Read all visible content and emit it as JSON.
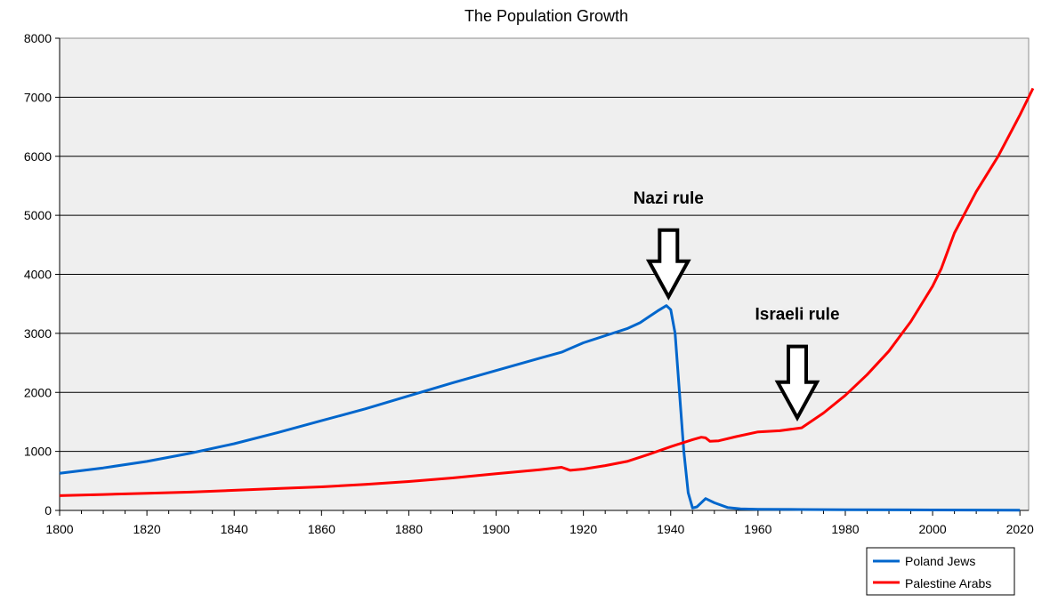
{
  "chart_data": {
    "type": "line",
    "title": "The Population Growth",
    "xlabel": "",
    "ylabel": "",
    "xlim": [
      1800,
      2022
    ],
    "ylim": [
      0,
      8000
    ],
    "x_ticks": [
      1800,
      1820,
      1840,
      1860,
      1880,
      1900,
      1920,
      1940,
      1960,
      1980,
      2000,
      2020
    ],
    "y_ticks": [
      0,
      1000,
      2000,
      3000,
      4000,
      5000,
      6000,
      7000,
      8000
    ],
    "grid": "horizontal",
    "legend_position": "bottom-right",
    "series": [
      {
        "name": "Poland Jews",
        "color": "#0066cc",
        "points": [
          [
            1800,
            630
          ],
          [
            1810,
            720
          ],
          [
            1820,
            830
          ],
          [
            1830,
            970
          ],
          [
            1840,
            1130
          ],
          [
            1850,
            1320
          ],
          [
            1860,
            1520
          ],
          [
            1870,
            1720
          ],
          [
            1880,
            1940
          ],
          [
            1890,
            2160
          ],
          [
            1900,
            2370
          ],
          [
            1910,
            2580
          ],
          [
            1915,
            2680
          ],
          [
            1920,
            2840
          ],
          [
            1925,
            2960
          ],
          [
            1930,
            3080
          ],
          [
            1933,
            3180
          ],
          [
            1935,
            3280
          ],
          [
            1937,
            3380
          ],
          [
            1939,
            3470
          ],
          [
            1940,
            3400
          ],
          [
            1941,
            3000
          ],
          [
            1942,
            2000
          ],
          [
            1943,
            1000
          ],
          [
            1944,
            300
          ],
          [
            1945,
            40
          ],
          [
            1946,
            60
          ],
          [
            1948,
            200
          ],
          [
            1950,
            130
          ],
          [
            1953,
            50
          ],
          [
            1956,
            25
          ],
          [
            1960,
            20
          ],
          [
            1970,
            15
          ],
          [
            1980,
            10
          ],
          [
            2000,
            8
          ],
          [
            2020,
            5
          ]
        ]
      },
      {
        "name": "Palestine Arabs",
        "color": "#ff0000",
        "points": [
          [
            1800,
            250
          ],
          [
            1810,
            270
          ],
          [
            1820,
            290
          ],
          [
            1830,
            310
          ],
          [
            1840,
            340
          ],
          [
            1850,
            370
          ],
          [
            1860,
            400
          ],
          [
            1870,
            440
          ],
          [
            1880,
            490
          ],
          [
            1890,
            550
          ],
          [
            1900,
            620
          ],
          [
            1910,
            690
          ],
          [
            1915,
            730
          ],
          [
            1917,
            680
          ],
          [
            1920,
            700
          ],
          [
            1925,
            760
          ],
          [
            1930,
            830
          ],
          [
            1935,
            950
          ],
          [
            1940,
            1080
          ],
          [
            1945,
            1200
          ],
          [
            1947,
            1240
          ],
          [
            1948,
            1230
          ],
          [
            1949,
            1170
          ],
          [
            1951,
            1180
          ],
          [
            1955,
            1250
          ],
          [
            1960,
            1330
          ],
          [
            1965,
            1350
          ],
          [
            1970,
            1400
          ],
          [
            1975,
            1650
          ],
          [
            1980,
            1950
          ],
          [
            1985,
            2300
          ],
          [
            1990,
            2700
          ],
          [
            1995,
            3200
          ],
          [
            2000,
            3800
          ],
          [
            2002,
            4100
          ],
          [
            2005,
            4700
          ],
          [
            2010,
            5400
          ],
          [
            2015,
            6000
          ],
          [
            2020,
            6700
          ],
          [
            2023,
            7150
          ]
        ]
      }
    ],
    "annotations": [
      {
        "text": "Nazi rule",
        "x": 1939.5,
        "y": 5200,
        "arrow_tip_y": 3620
      },
      {
        "text": "Israeli rule",
        "x": 1969,
        "y": 3230,
        "arrow_tip_y": 1570
      }
    ]
  }
}
